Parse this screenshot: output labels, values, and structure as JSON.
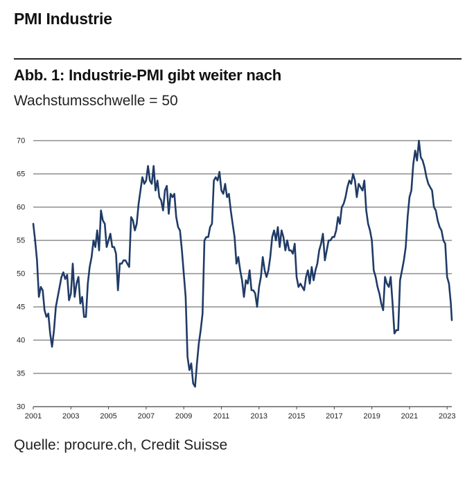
{
  "section": {
    "title": "PMI Industrie"
  },
  "figure": {
    "title": "Abb. 1: Industrie-PMI gibt weiter nach",
    "subtitle": "Wachstumsschwelle = 50",
    "source": "Quelle: procure.ch, Credit Suisse"
  },
  "chart_data": {
    "type": "line",
    "title": "",
    "xlabel": "",
    "ylabel": "",
    "ylim": [
      30,
      70
    ],
    "xlim": [
      2001,
      2023.25
    ],
    "y_ticks": [
      30,
      35,
      40,
      45,
      50,
      55,
      60,
      65,
      70
    ],
    "x_ticks": [
      2001,
      2003,
      2005,
      2007,
      2009,
      2011,
      2013,
      2015,
      2017,
      2019,
      2021,
      2023
    ],
    "grid": "horizontal",
    "legend": "none",
    "color": "#1f3b66",
    "series": [
      {
        "points": [
          [
            2001.0,
            57.5
          ],
          [
            2001.1,
            55.0
          ],
          [
            2001.2,
            52.0
          ],
          [
            2001.3,
            46.5
          ],
          [
            2001.4,
            48.0
          ],
          [
            2001.5,
            47.5
          ],
          [
            2001.6,
            44.5
          ],
          [
            2001.7,
            43.5
          ],
          [
            2001.8,
            44.0
          ],
          [
            2001.9,
            41.0
          ],
          [
            2002.0,
            39.0
          ],
          [
            2002.1,
            41.5
          ],
          [
            2002.2,
            45.0
          ],
          [
            2002.3,
            46.5
          ],
          [
            2002.4,
            48.0
          ],
          [
            2002.5,
            49.5
          ],
          [
            2002.6,
            50.2
          ],
          [
            2002.7,
            49.2
          ],
          [
            2002.8,
            49.8
          ],
          [
            2002.9,
            46.0
          ],
          [
            2003.0,
            47.0
          ],
          [
            2003.1,
            51.5
          ],
          [
            2003.2,
            46.5
          ],
          [
            2003.3,
            48.5
          ],
          [
            2003.4,
            49.5
          ],
          [
            2003.5,
            45.5
          ],
          [
            2003.6,
            46.5
          ],
          [
            2003.7,
            43.5
          ],
          [
            2003.8,
            43.5
          ],
          [
            2003.9,
            48.5
          ],
          [
            2004.0,
            51.0
          ],
          [
            2004.1,
            52.5
          ],
          [
            2004.2,
            55.0
          ],
          [
            2004.3,
            54.0
          ],
          [
            2004.4,
            56.5
          ],
          [
            2004.5,
            53.5
          ],
          [
            2004.6,
            59.5
          ],
          [
            2004.7,
            58.0
          ],
          [
            2004.8,
            57.5
          ],
          [
            2004.9,
            54.0
          ],
          [
            2005.0,
            55.0
          ],
          [
            2005.1,
            56.0
          ],
          [
            2005.2,
            54.0
          ],
          [
            2005.3,
            54.0
          ],
          [
            2005.4,
            53.0
          ],
          [
            2005.5,
            47.5
          ],
          [
            2005.6,
            51.5
          ],
          [
            2005.7,
            51.5
          ],
          [
            2005.8,
            52.0
          ],
          [
            2005.9,
            52.0
          ],
          [
            2006.0,
            51.5
          ],
          [
            2006.1,
            51.0
          ],
          [
            2006.2,
            58.5
          ],
          [
            2006.3,
            58.0
          ],
          [
            2006.4,
            56.5
          ],
          [
            2006.5,
            57.5
          ],
          [
            2006.6,
            60.5
          ],
          [
            2006.7,
            62.5
          ],
          [
            2006.8,
            64.5
          ],
          [
            2006.9,
            63.5
          ],
          [
            2007.0,
            64.0
          ],
          [
            2007.1,
            66.2
          ],
          [
            2007.2,
            64.0
          ],
          [
            2007.3,
            63.5
          ],
          [
            2007.4,
            66.2
          ],
          [
            2007.5,
            62.5
          ],
          [
            2007.6,
            64.0
          ],
          [
            2007.7,
            61.5
          ],
          [
            2007.8,
            61.0
          ],
          [
            2007.9,
            59.5
          ],
          [
            2008.0,
            62.5
          ],
          [
            2008.1,
            63.2
          ],
          [
            2008.2,
            59.0
          ],
          [
            2008.3,
            62.0
          ],
          [
            2008.4,
            61.5
          ],
          [
            2008.5,
            62.0
          ],
          [
            2008.6,
            58.5
          ],
          [
            2008.7,
            57.0
          ],
          [
            2008.8,
            56.5
          ],
          [
            2008.9,
            53.5
          ],
          [
            2009.0,
            50.0
          ],
          [
            2009.1,
            46.5
          ],
          [
            2009.2,
            37.5
          ],
          [
            2009.3,
            35.5
          ],
          [
            2009.4,
            36.5
          ],
          [
            2009.5,
            33.5
          ],
          [
            2009.6,
            33.0
          ],
          [
            2009.7,
            36.5
          ],
          [
            2009.8,
            39.5
          ],
          [
            2009.9,
            41.5
          ],
          [
            2010.0,
            44.0
          ],
          [
            2010.1,
            55.0
          ],
          [
            2010.2,
            55.5
          ],
          [
            2010.3,
            55.5
          ],
          [
            2010.4,
            57.0
          ],
          [
            2010.5,
            57.5
          ],
          [
            2010.6,
            64.0
          ],
          [
            2010.7,
            64.5
          ],
          [
            2010.8,
            64.0
          ],
          [
            2010.9,
            65.3
          ],
          [
            2011.0,
            62.5
          ],
          [
            2011.1,
            62.0
          ],
          [
            2011.2,
            63.5
          ],
          [
            2011.3,
            61.5
          ],
          [
            2011.4,
            62.0
          ],
          [
            2011.5,
            59.5
          ],
          [
            2011.6,
            57.5
          ],
          [
            2011.7,
            55.5
          ],
          [
            2011.8,
            51.5
          ],
          [
            2011.9,
            52.5
          ],
          [
            2012.0,
            50.5
          ],
          [
            2012.1,
            49.0
          ],
          [
            2012.2,
            46.5
          ],
          [
            2012.3,
            49.0
          ],
          [
            2012.4,
            48.5
          ],
          [
            2012.5,
            50.5
          ],
          [
            2012.6,
            47.5
          ],
          [
            2012.7,
            47.5
          ],
          [
            2012.8,
            47.0
          ],
          [
            2012.9,
            45.0
          ],
          [
            2013.0,
            48.0
          ],
          [
            2013.1,
            49.5
          ],
          [
            2013.2,
            52.5
          ],
          [
            2013.3,
            50.5
          ],
          [
            2013.4,
            49.5
          ],
          [
            2013.5,
            50.5
          ],
          [
            2013.6,
            52.5
          ],
          [
            2013.7,
            55.5
          ],
          [
            2013.8,
            56.5
          ],
          [
            2013.9,
            55.0
          ],
          [
            2014.0,
            57.0
          ],
          [
            2014.1,
            54.0
          ],
          [
            2014.2,
            56.5
          ],
          [
            2014.3,
            55.5
          ],
          [
            2014.4,
            53.5
          ],
          [
            2014.5,
            55.0
          ],
          [
            2014.6,
            53.5
          ],
          [
            2014.7,
            53.5
          ],
          [
            2014.8,
            53.0
          ],
          [
            2014.9,
            54.5
          ],
          [
            2015.0,
            49.5
          ],
          [
            2015.1,
            48.0
          ],
          [
            2015.2,
            48.5
          ],
          [
            2015.3,
            48.0
          ],
          [
            2015.4,
            47.5
          ],
          [
            2015.5,
            49.5
          ],
          [
            2015.6,
            50.5
          ],
          [
            2015.7,
            48.5
          ],
          [
            2015.8,
            51.0
          ],
          [
            2015.9,
            49.0
          ],
          [
            2016.0,
            50.5
          ],
          [
            2016.1,
            51.5
          ],
          [
            2016.2,
            53.5
          ],
          [
            2016.3,
            54.5
          ],
          [
            2016.4,
            56.0
          ],
          [
            2016.5,
            52.0
          ],
          [
            2016.6,
            53.5
          ],
          [
            2016.7,
            55.0
          ],
          [
            2016.8,
            55.0
          ],
          [
            2016.9,
            55.5
          ],
          [
            2017.0,
            55.5
          ],
          [
            2017.1,
            56.5
          ],
          [
            2017.2,
            58.5
          ],
          [
            2017.3,
            57.5
          ],
          [
            2017.4,
            60.0
          ],
          [
            2017.5,
            60.5
          ],
          [
            2017.6,
            61.5
          ],
          [
            2017.7,
            63.0
          ],
          [
            2017.8,
            64.0
          ],
          [
            2017.9,
            63.5
          ],
          [
            2018.0,
            65.0
          ],
          [
            2018.1,
            64.0
          ],
          [
            2018.2,
            61.5
          ],
          [
            2018.3,
            63.5
          ],
          [
            2018.4,
            63.0
          ],
          [
            2018.5,
            62.5
          ],
          [
            2018.6,
            64.0
          ],
          [
            2018.7,
            59.5
          ],
          [
            2018.8,
            57.5
          ],
          [
            2018.9,
            56.5
          ],
          [
            2019.0,
            55.0
          ],
          [
            2019.1,
            50.5
          ],
          [
            2019.2,
            49.5
          ],
          [
            2019.3,
            48.0
          ],
          [
            2019.4,
            47.0
          ],
          [
            2019.5,
            45.5
          ],
          [
            2019.6,
            44.5
          ],
          [
            2019.7,
            49.5
          ],
          [
            2019.8,
            48.5
          ],
          [
            2019.9,
            48.0
          ],
          [
            2020.0,
            49.5
          ],
          [
            2020.1,
            45.5
          ],
          [
            2020.2,
            41.0
          ],
          [
            2020.3,
            41.5
          ],
          [
            2020.4,
            41.5
          ],
          [
            2020.5,
            49.0
          ],
          [
            2020.6,
            50.5
          ],
          [
            2020.7,
            52.0
          ],
          [
            2020.8,
            54.0
          ],
          [
            2020.9,
            58.5
          ],
          [
            2021.0,
            61.5
          ],
          [
            2021.1,
            62.5
          ],
          [
            2021.2,
            66.5
          ],
          [
            2021.3,
            68.5
          ],
          [
            2021.4,
            67.0
          ],
          [
            2021.5,
            70.0
          ],
          [
            2021.6,
            67.5
          ],
          [
            2021.7,
            67.0
          ],
          [
            2021.8,
            66.0
          ],
          [
            2021.9,
            64.5
          ],
          [
            2022.0,
            63.5
          ],
          [
            2022.1,
            63.0
          ],
          [
            2022.2,
            62.5
          ],
          [
            2022.3,
            60.0
          ],
          [
            2022.4,
            59.5
          ],
          [
            2022.5,
            58.0
          ],
          [
            2022.6,
            57.0
          ],
          [
            2022.7,
            56.5
          ],
          [
            2022.8,
            55.0
          ],
          [
            2022.9,
            54.5
          ],
          [
            2023.0,
            49.5
          ],
          [
            2023.1,
            48.5
          ],
          [
            2023.2,
            45.5
          ],
          [
            2023.25,
            43.0
          ]
        ]
      }
    ]
  }
}
